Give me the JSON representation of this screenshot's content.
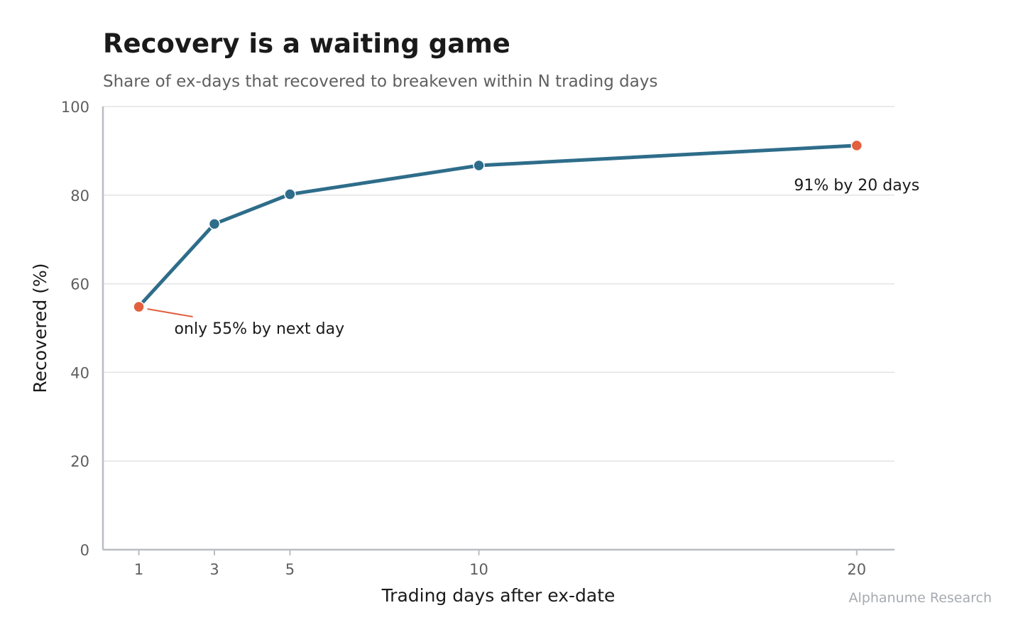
{
  "chart_data": {
    "type": "line",
    "title": "Recovery is a waiting game",
    "subtitle": "Share of ex-days that recovered to breakeven within N trading days",
    "xlabel": "Trading days after ex-date",
    "ylabel": "Recovered (%)",
    "x": [
      1,
      3,
      5,
      10,
      20
    ],
    "series": [
      {
        "values": [
          54.8,
          73.5,
          80.2,
          86.7,
          91.2
        ]
      }
    ],
    "xlim": [
      0.05,
      21.0
    ],
    "ylim": [
      0,
      100
    ],
    "x_ticks": [
      "1",
      "3",
      "5",
      "10",
      "20"
    ],
    "y_ticks": [
      "0",
      "20",
      "40",
      "60",
      "80",
      "100"
    ],
    "grid": "horizontal",
    "annotations": [
      {
        "text": "only 55% by next day",
        "x": 1,
        "y": 54.8,
        "highlight": true
      },
      {
        "text": "91% by 20 days",
        "x": 20,
        "y": 91.2,
        "highlight": true
      }
    ],
    "source": "Alphanume Research",
    "colors": {
      "line": "#2e6d8a",
      "highlight": "#e2603e",
      "grid": "#e3e3e3",
      "axis": "#b9bec4"
    }
  }
}
